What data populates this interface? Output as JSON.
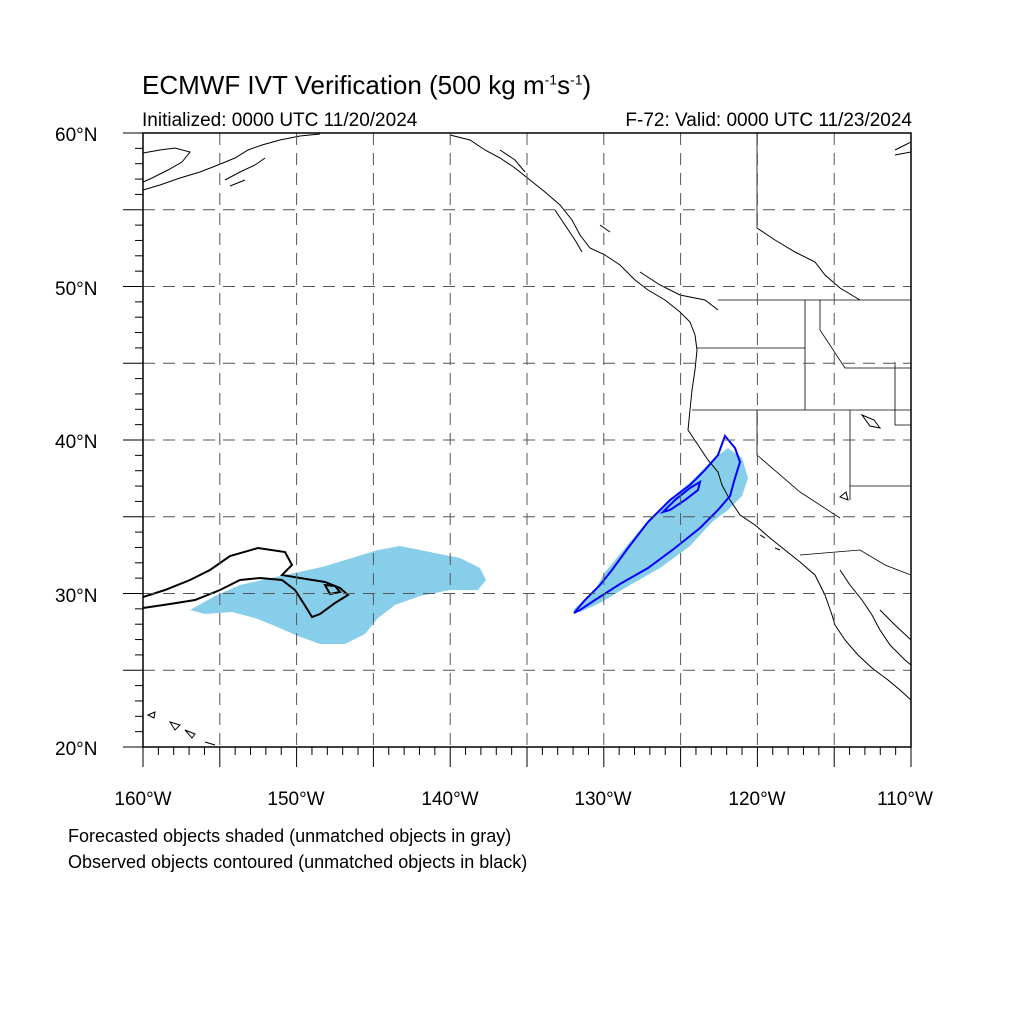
{
  "title": {
    "prefix": "ECMWF IVT Verification (500 kg m",
    "sup1": "-1",
    "mid": "s",
    "sup2": "-1",
    "suffix": ")"
  },
  "subtitle": {
    "initialized": "Initialized: 0000 UTC 11/20/2024",
    "valid": "F-72: Valid: 0000 UTC 11/23/2024"
  },
  "axes": {
    "lat_labels": [
      "60°N",
      "50°N",
      "40°N",
      "30°N",
      "20°N"
    ],
    "lon_labels": [
      "160°W",
      "150°W",
      "140°W",
      "130°W",
      "120°W",
      "110°W"
    ],
    "lat_range": [
      20,
      60
    ],
    "lon_range": [
      -160,
      -110
    ],
    "grid": "dashed every 5°"
  },
  "legend": {
    "line1": "Forecasted objects shaded (unmatched objects in gray)",
    "line2": "Observed objects contoured (unmatched objects in black)"
  },
  "colors": {
    "forecast_fill": "#87ceeb",
    "matched_contour": "#0000ff",
    "unmatched_contour": "#000000",
    "grid": "#555555"
  },
  "objects": [
    {
      "type": "forecast-shaded",
      "region": "central Pacific",
      "center_lat": 30,
      "center_lon": -143
    },
    {
      "type": "forecast-shaded",
      "region": "off California coast",
      "center_lat": 34,
      "center_lon": -126
    },
    {
      "type": "observed-unmatched-contour",
      "region": "central Pacific",
      "center_lat": 30.5,
      "center_lon": -152
    },
    {
      "type": "observed-matched-contour",
      "region": "off California coast",
      "center_lat": 34,
      "center_lon": -126
    }
  ]
}
